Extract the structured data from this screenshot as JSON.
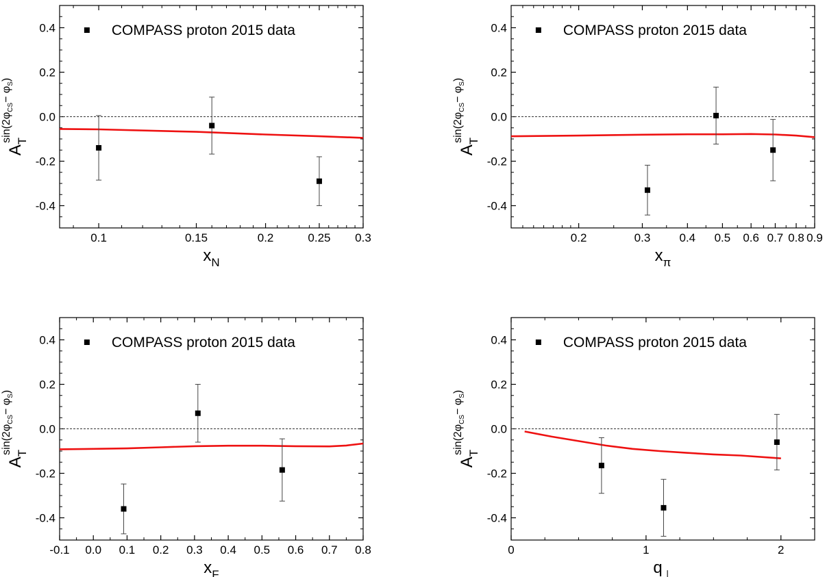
{
  "chart_data": [
    {
      "type": "scatter",
      "scale_x": "log",
      "xlim": [
        0.085,
        0.3
      ],
      "ylim": [
        -0.5,
        0.5
      ],
      "xticks": [
        0.1,
        0.15,
        0.2,
        0.25,
        0.3
      ],
      "xtick_labels": [
        "0.1",
        "0.15",
        "0.2",
        "0.25",
        "0.3"
      ],
      "xminor": [
        0.09,
        0.11,
        0.12,
        0.13,
        0.14,
        0.16,
        0.17,
        0.18,
        0.19,
        0.21,
        0.22,
        0.23,
        0.24,
        0.26,
        0.27,
        0.28,
        0.29
      ],
      "yticks": [
        -0.4,
        -0.2,
        0.0,
        0.2,
        0.4
      ],
      "ytick_labels": [
        "-0.4",
        "-0.2",
        "0.0",
        "0.2",
        "0.4"
      ],
      "xlabel": "x",
      "xlabel_sub": "N",
      "ylabel": "A",
      "ylabel_sub": "T",
      "ylabel_sup": "sin(2φ",
      "ylabel_sup_cs": "CS",
      "ylabel_sup_rest": "− φ",
      "ylabel_sup_s": "S",
      "ylabel_sup_close": ")",
      "legend": "COMPASS proton 2015 data",
      "legend_position": "top",
      "zero_line": true,
      "points": [
        {
          "x": 0.1,
          "y": -0.14,
          "err": 0.145
        },
        {
          "x": 0.16,
          "y": -0.04,
          "err": 0.128
        },
        {
          "x": 0.25,
          "y": -0.29,
          "err": 0.11
        }
      ],
      "curve_color": "#ee1111",
      "curve": [
        [
          0.085,
          -0.055
        ],
        [
          0.1,
          -0.057
        ],
        [
          0.15,
          -0.068
        ],
        [
          0.2,
          -0.08
        ],
        [
          0.25,
          -0.088
        ],
        [
          0.3,
          -0.095
        ]
      ]
    },
    {
      "type": "scatter",
      "scale_x": "log",
      "xlim": [
        0.13,
        0.9
      ],
      "ylim": [
        -0.5,
        0.5
      ],
      "xticks": [
        0.2,
        0.3,
        0.4,
        0.5,
        0.6,
        0.7,
        0.8,
        0.9
      ],
      "xtick_labels": [
        "0.2",
        "0.3",
        "0.4",
        "0.5",
        "0.6",
        "0.7",
        "0.8",
        "0.9"
      ],
      "xminor": [
        0.14,
        0.15,
        0.16,
        0.17,
        0.18,
        0.19,
        0.25,
        0.35,
        0.45,
        0.55,
        0.65,
        0.75,
        0.85
      ],
      "yticks": [
        -0.4,
        -0.2,
        0.0,
        0.2,
        0.4
      ],
      "ytick_labels": [
        "-0.4",
        "-0.2",
        "0.0",
        "0.2",
        "0.4"
      ],
      "xlabel": "x",
      "xlabel_sub": "π",
      "ylabel": "A",
      "ylabel_sub": "T",
      "ylabel_sup": "sin(2φ",
      "ylabel_sup_cs": "CS",
      "ylabel_sup_rest": "− φ",
      "ylabel_sup_s": "S",
      "ylabel_sup_close": ")",
      "legend": "COMPASS proton 2015 data",
      "legend_position": "top",
      "zero_line": true,
      "points": [
        {
          "x": 0.31,
          "y": -0.33,
          "err": 0.112
        },
        {
          "x": 0.48,
          "y": 0.005,
          "err": 0.128
        },
        {
          "x": 0.69,
          "y": -0.15,
          "err": 0.138
        }
      ],
      "curve_color": "#ee1111",
      "curve": [
        [
          0.13,
          -0.088
        ],
        [
          0.2,
          -0.085
        ],
        [
          0.3,
          -0.081
        ],
        [
          0.4,
          -0.079
        ],
        [
          0.5,
          -0.079
        ],
        [
          0.6,
          -0.078
        ],
        [
          0.7,
          -0.08
        ],
        [
          0.8,
          -0.085
        ],
        [
          0.9,
          -0.092
        ]
      ]
    },
    {
      "type": "scatter",
      "scale_x": "linear",
      "xlim": [
        -0.1,
        0.8
      ],
      "ylim": [
        -0.5,
        0.5
      ],
      "xticks": [
        -0.1,
        0.0,
        0.1,
        0.2,
        0.3,
        0.4,
        0.5,
        0.6,
        0.7,
        0.8
      ],
      "xtick_labels": [
        "-0.1",
        "0.0",
        "0.1",
        "0.2",
        "0.3",
        "0.4",
        "0.5",
        "0.6",
        "0.7",
        "0.8"
      ],
      "xminor": [
        -0.05,
        0.05,
        0.15,
        0.25,
        0.35,
        0.45,
        0.55,
        0.65,
        0.75
      ],
      "yticks": [
        -0.4,
        -0.2,
        0.0,
        0.2,
        0.4
      ],
      "ytick_labels": [
        "-0.4",
        "-0.2",
        "0.0",
        "0.2",
        "0.4"
      ],
      "xlabel": "x",
      "xlabel_sub": "F",
      "ylabel": "A",
      "ylabel_sub": "T",
      "ylabel_sup": "sin(2φ",
      "ylabel_sup_cs": "CS",
      "ylabel_sup_rest": "− φ",
      "ylabel_sup_s": "S",
      "ylabel_sup_close": ")",
      "legend": "COMPASS proton 2015 data",
      "legend_position": "top",
      "zero_line": true,
      "points": [
        {
          "x": 0.09,
          "y": -0.36,
          "err": 0.112
        },
        {
          "x": 0.31,
          "y": 0.07,
          "err": 0.13
        },
        {
          "x": 0.56,
          "y": -0.185,
          "err": 0.14
        }
      ],
      "curve_color": "#ee1111",
      "curve": [
        [
          -0.1,
          -0.092
        ],
        [
          0.0,
          -0.09
        ],
        [
          0.1,
          -0.088
        ],
        [
          0.2,
          -0.083
        ],
        [
          0.3,
          -0.078
        ],
        [
          0.4,
          -0.076
        ],
        [
          0.5,
          -0.076
        ],
        [
          0.6,
          -0.078
        ],
        [
          0.7,
          -0.079
        ],
        [
          0.75,
          -0.075
        ],
        [
          0.8,
          -0.066
        ]
      ]
    },
    {
      "type": "scatter",
      "scale_x": "linear",
      "xlim": [
        0,
        2.25
      ],
      "ylim": [
        -0.5,
        0.5
      ],
      "xticks": [
        0,
        1,
        2
      ],
      "xtick_labels": [
        "0",
        "1",
        "2"
      ],
      "xminor": [
        0.25,
        0.5,
        0.75,
        1.25,
        1.5,
        1.75
      ],
      "yticks": [
        -0.4,
        -0.2,
        0.0,
        0.2,
        0.4
      ],
      "ytick_labels": [
        "-0.4",
        "-0.2",
        "0.0",
        "0.2",
        "0.4"
      ],
      "xlabel": "q",
      "xlabel_sub": "⊥",
      "ylabel": "A",
      "ylabel_sub": "T",
      "ylabel_sup": "sin(2φ",
      "ylabel_sup_cs": "CS",
      "ylabel_sup_rest": "− φ",
      "ylabel_sup_s": "S",
      "ylabel_sup_close": ")",
      "legend": "COMPASS proton 2015 data",
      "legend_position": "top",
      "zero_line": true,
      "points": [
        {
          "x": 0.67,
          "y": -0.165,
          "err": 0.125
        },
        {
          "x": 1.13,
          "y": -0.355,
          "err": 0.128
        },
        {
          "x": 1.97,
          "y": -0.06,
          "err": 0.125
        }
      ],
      "curve_color": "#ee1111",
      "curve": [
        [
          0.1,
          -0.012
        ],
        [
          0.3,
          -0.035
        ],
        [
          0.5,
          -0.055
        ],
        [
          0.7,
          -0.075
        ],
        [
          0.9,
          -0.09
        ],
        [
          1.1,
          -0.1
        ],
        [
          1.3,
          -0.108
        ],
        [
          1.5,
          -0.115
        ],
        [
          1.7,
          -0.12
        ],
        [
          2.0,
          -0.133
        ]
      ]
    }
  ]
}
